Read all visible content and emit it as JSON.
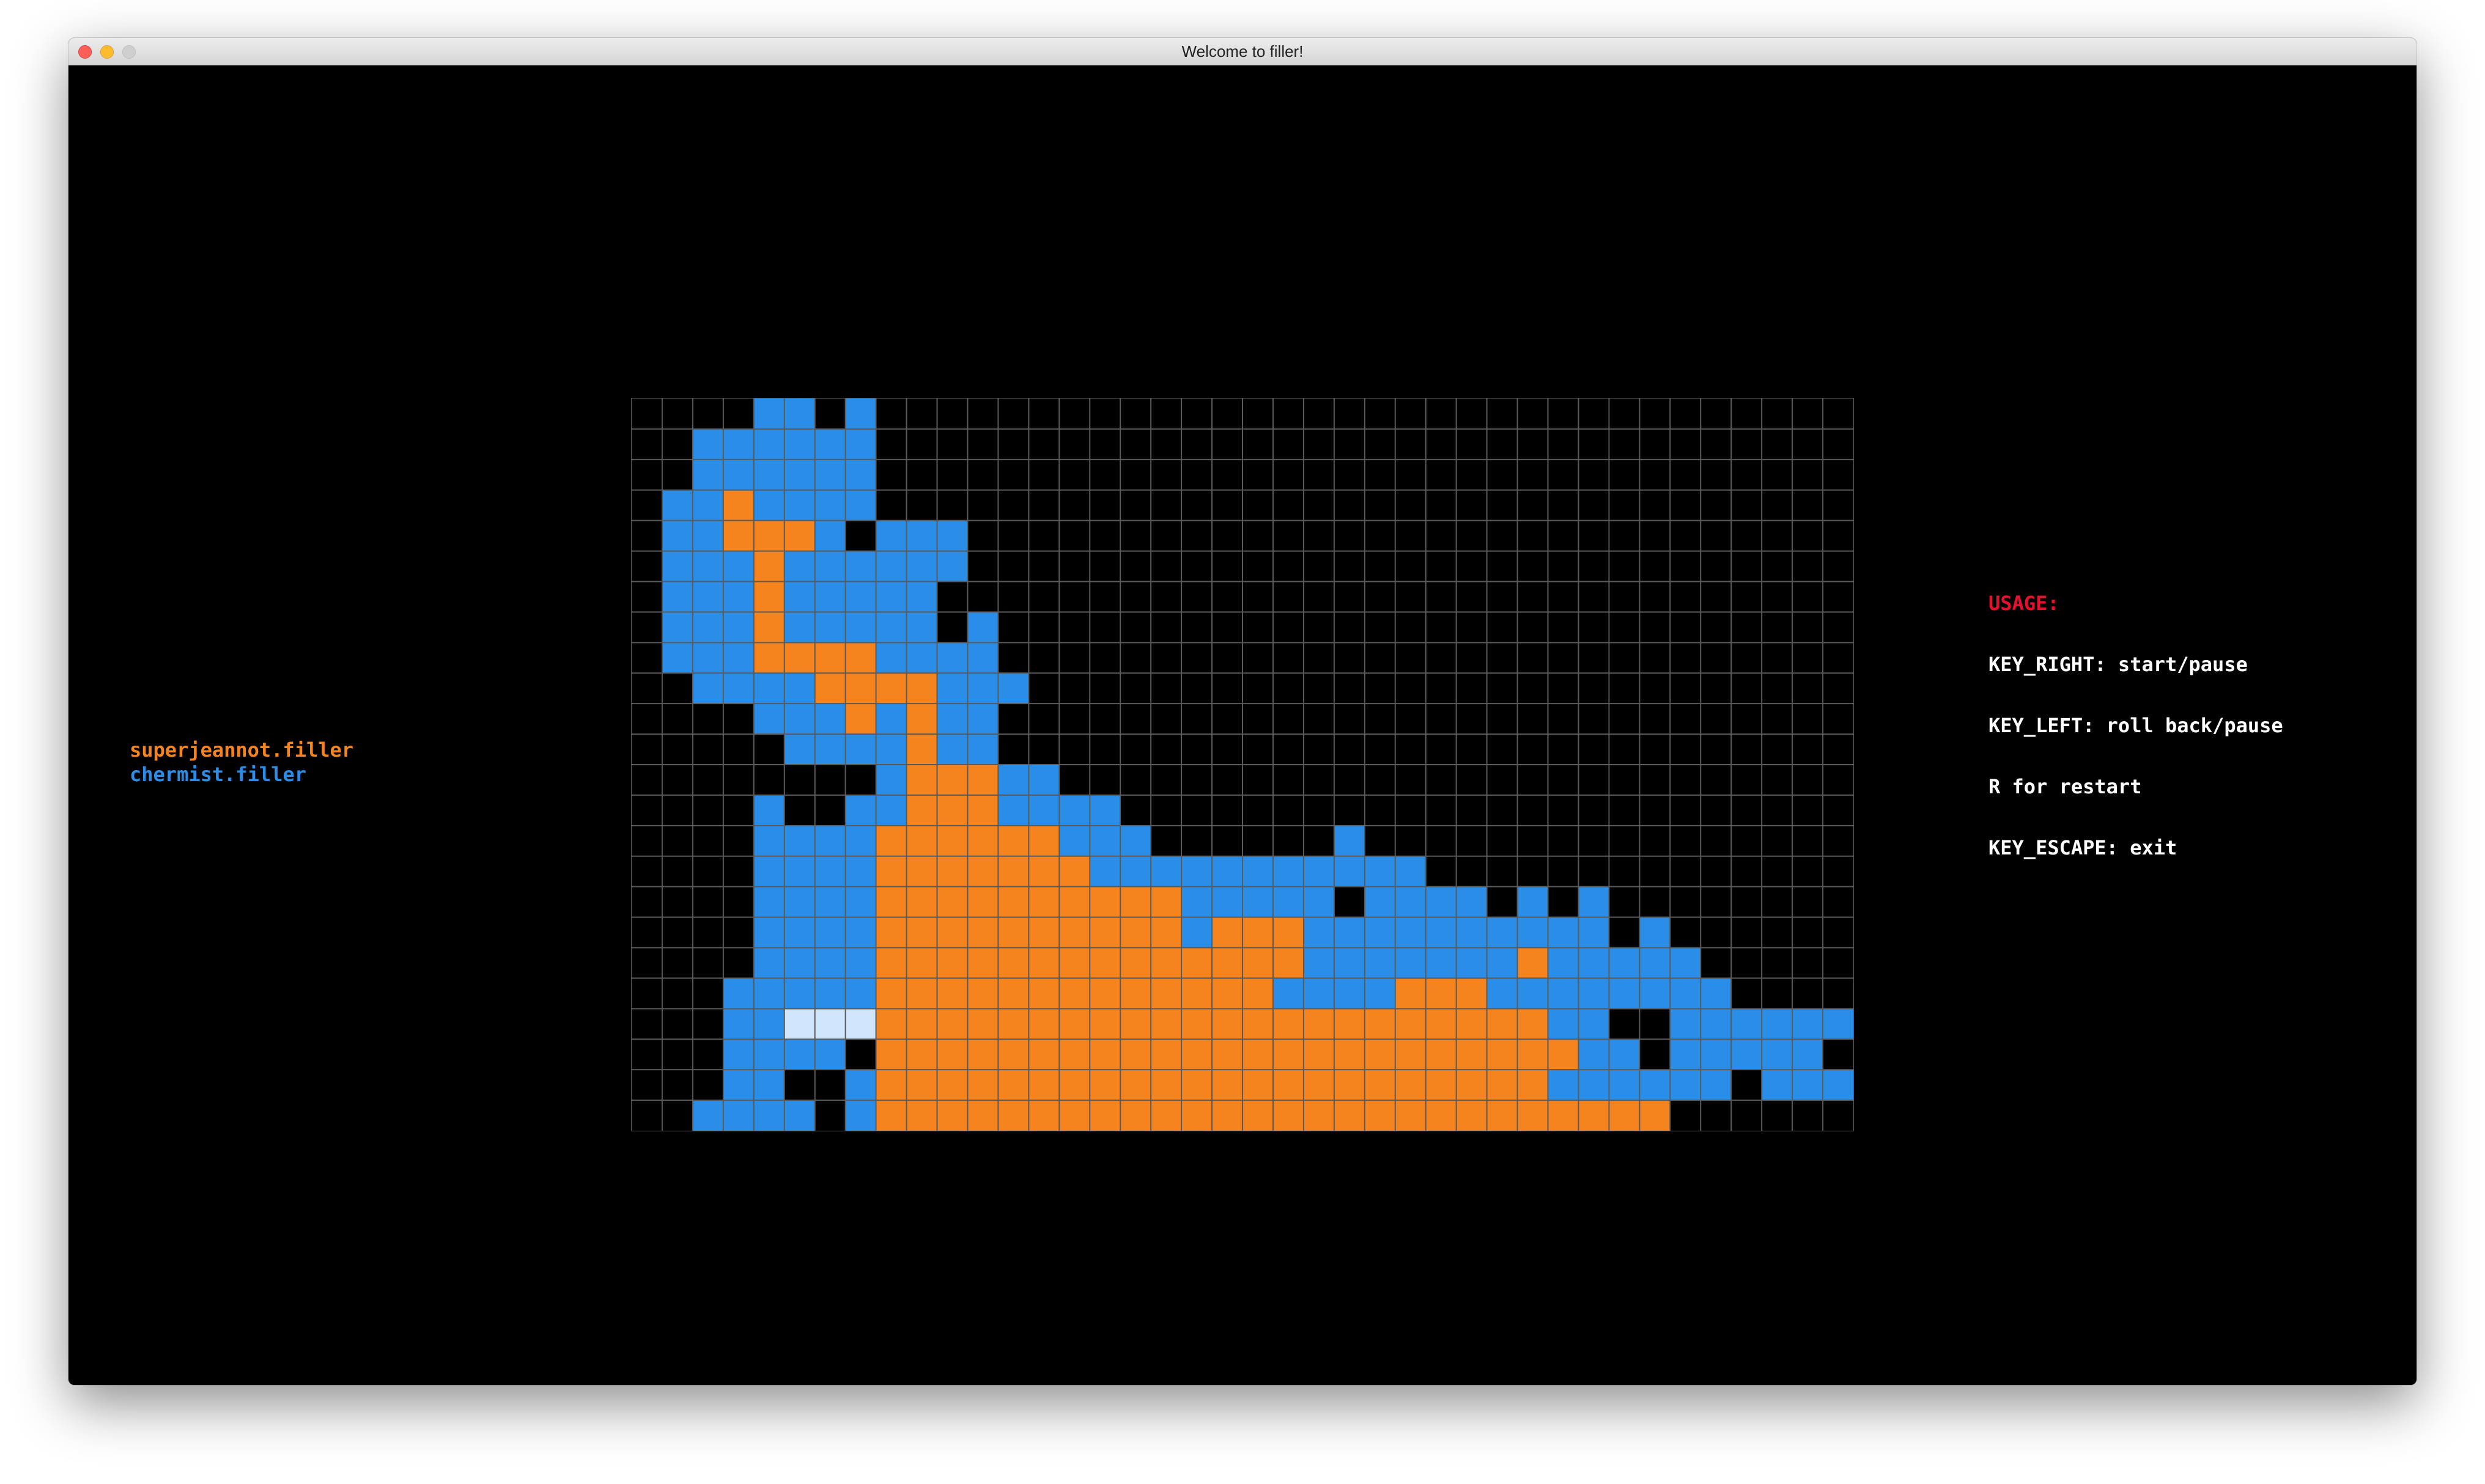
{
  "window": {
    "title": "Welcome to filler!"
  },
  "players": {
    "p1": {
      "name": "superjeannot.filler",
      "color": "#f5841f"
    },
    "p2": {
      "name": "chermist.filler",
      "color": "#2a8ee8"
    }
  },
  "usage": {
    "heading": "USAGE:",
    "key_right": "KEY_RIGHT: start/pause",
    "key_left": "KEY_LEFT: roll back/pause",
    "restart": "R for restart",
    "escape": "KEY_ESCAPE: exit"
  },
  "board": {
    "cols": 40,
    "rows": 24,
    "legend": {
      ".": "empty",
      "B": "chermist.filler",
      "O": "superjeannot.filler",
      "L": "last-piece"
    },
    "colors": {
      "empty": "#000000",
      "B": "#2a8ee8",
      "O": "#f5841f",
      "L": "#cfe5fb",
      "grid": "#5a5a5a"
    },
    "grid": [
      "....BB.B................................",
      "..BBBBBB................................",
      "..BBBBBB................................",
      ".BBOBBBB................................",
      ".BBOOOB.BBB.............................",
      ".BBBOBBBBBB.............................",
      ".BBBOBBBBB..............................",
      ".BBBOBBBBB.B............................",
      ".BBBOOOOBBBB............................",
      "..BBBBOOOOBBB...........................",
      "....BBBOBOBB............................",
      ".....BBBBOBB............................",
      "........BOOOBB..........................",
      "....B..BBOOOBBBB........................",
      "....BBBBOOOOOOBBB......B................",
      "....BBBBOOOOOOOBBBBBBBBBBB..............",
      "....BBBBOOOOOOOOOOBBBBB.BBBB.B.B........",
      "....BBBBOOOOOOOOOOBOOOBBBBBBBBBB.B......",
      "....BBBBOOOOOOOOOOOOOOBBBBBBBOBBBBB.....",
      "...BBBBBOOOOOOOOOOOOOBBBBOOOBBBBBBBB....",
      "...BBLLLOOOOOOOOOOOOOOOOOOOOOOBB..BBBBBB",
      "...BBBB.OOOOOOOOOOOOOOOOOOOOOOOBB.BBBBB.",
      "...BB..BOOOOOOOOOOOOOOOOOOOOOOBBBBBB.BBB",
      "..BBBB.BOOOOOOOOOOOOOOOOOOOOOOOOOO......"
    ]
  }
}
